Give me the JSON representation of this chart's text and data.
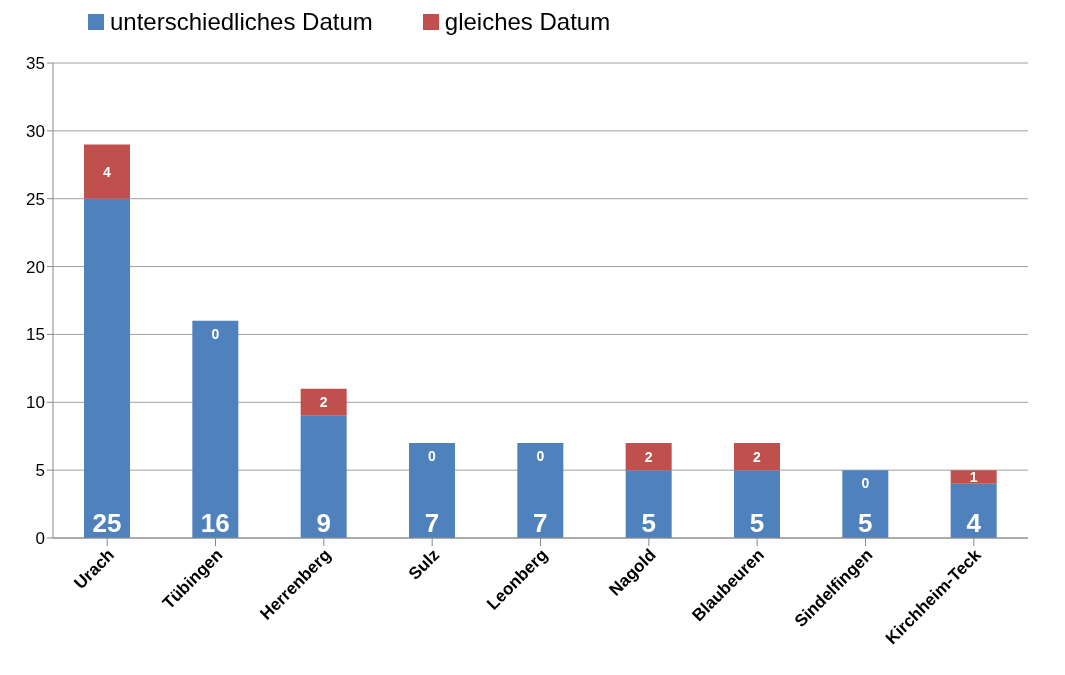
{
  "chart_data": {
    "type": "bar",
    "stacked": true,
    "categories": [
      "Urach",
      "Tübingen",
      "Herrenberg",
      "Sulz",
      "Leonberg",
      "Nagold",
      "Blaubeuren",
      "Sindelfingen",
      "Kirchheim-Teck"
    ],
    "series": [
      {
        "name": "unterschiedliches Datum",
        "color": "#4f81bd",
        "values": [
          25,
          16,
          9,
          7,
          7,
          5,
          5,
          5,
          4
        ]
      },
      {
        "name": "gleiches Datum",
        "color": "#c0504d",
        "values": [
          4,
          0,
          2,
          0,
          0,
          2,
          2,
          0,
          1
        ]
      }
    ],
    "ylim": [
      0,
      35
    ],
    "yticks": [
      0,
      5,
      10,
      15,
      20,
      25,
      30,
      35
    ],
    "grid": "y",
    "legend": "top",
    "data_labels": true
  }
}
